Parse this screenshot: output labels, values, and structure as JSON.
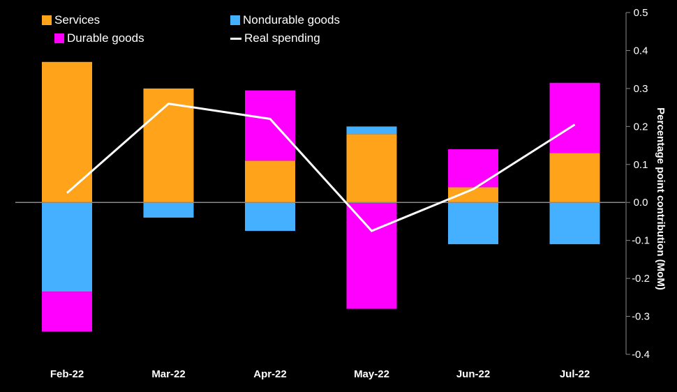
{
  "chart_data": {
    "type": "bar",
    "stacked": true,
    "categories": [
      "Feb-22",
      "Mar-22",
      "Apr-22",
      "May-22",
      "Jun-22",
      "Jul-22"
    ],
    "series": [
      {
        "name": "Services",
        "color": "#ffa31a",
        "values": [
          0.37,
          0.3,
          0.11,
          0.18,
          0.04,
          0.13
        ]
      },
      {
        "name": "Nondurable goods",
        "color": "#45b0ff",
        "values": [
          -0.235,
          -0.04,
          -0.075,
          0.02,
          -0.11,
          -0.11
        ]
      },
      {
        "name": "Durable goods",
        "color": "#ff00ff",
        "values": [
          -0.105,
          0.0,
          0.185,
          -0.28,
          0.1,
          0.185
        ]
      }
    ],
    "line": {
      "name": "Real spending",
      "color": "#ffffff",
      "values": [
        0.025,
        0.26,
        0.22,
        -0.075,
        0.035,
        0.205
      ]
    },
    "ylabel": "Percentage point contribution (MoM)",
    "ylim": [
      -0.4,
      0.5
    ],
    "yticks": [
      "0.5",
      "0.4",
      "0.3",
      "0.2",
      "0.1",
      "0.0",
      "-0.1",
      "-0.2",
      "-0.3",
      "-0.4"
    ],
    "ytick_values": [
      0.5,
      0.4,
      0.3,
      0.2,
      0.1,
      0.0,
      -0.1,
      -0.2,
      -0.3,
      -0.4
    ],
    "legend": {
      "services": "Services",
      "nondurable": "Nondurable goods",
      "durable": "Durable goods",
      "real_spending": "Real spending"
    }
  }
}
